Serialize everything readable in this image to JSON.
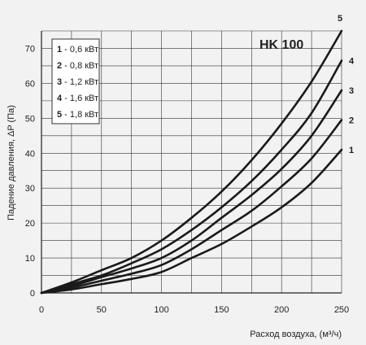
{
  "chart_data": {
    "type": "line",
    "title": "HK 100",
    "xlabel": "Расход воздуха, (м³/ч)",
    "ylabel": "Падение давления, ΔP (Па)",
    "xlim": [
      0,
      250
    ],
    "ylim": [
      0,
      75
    ],
    "xticks": [
      0,
      50,
      100,
      150,
      200,
      250
    ],
    "yticks": [
      0,
      10,
      20,
      30,
      40,
      50,
      60,
      70
    ],
    "grid": true,
    "legend_position": "top-left",
    "series": [
      {
        "name": "1",
        "legend_label": "1 - 0,6 кВт",
        "num": "1",
        "desc": " - 0,6 кВт",
        "x": [
          0,
          25,
          50,
          75,
          100,
          125,
          150,
          175,
          200,
          225,
          250
        ],
        "y": [
          0,
          1,
          2.5,
          4,
          6,
          10,
          14,
          19,
          24.5,
          31.5,
          41
        ]
      },
      {
        "name": "2",
        "legend_label": "2 - 0,8 кВт",
        "num": "2",
        "desc": " - 0,8 кВт",
        "x": [
          0,
          25,
          50,
          75,
          100,
          125,
          150,
          175,
          200,
          225,
          250
        ],
        "y": [
          0,
          1.5,
          3.5,
          5.5,
          8,
          12.5,
          18,
          23.5,
          30.5,
          38.5,
          49.5
        ]
      },
      {
        "name": "3",
        "legend_label": "3 - 1,2 кВт",
        "num": "3",
        "desc": " - 1,2 кВт",
        "x": [
          0,
          25,
          50,
          75,
          100,
          125,
          150,
          175,
          200,
          225,
          250
        ],
        "y": [
          0,
          2,
          4.5,
          7,
          10,
          15,
          21.5,
          28,
          35.5,
          45,
          58
        ]
      },
      {
        "name": "4",
        "legend_label": "4 - 1,6 кВт",
        "num": "4",
        "desc": " - 1,6 кВт",
        "x": [
          0,
          25,
          50,
          75,
          100,
          125,
          150,
          175,
          200,
          225,
          250
        ],
        "y": [
          0,
          2.5,
          5,
          8.5,
          12.5,
          18,
          24.5,
          32,
          41,
          51.5,
          66.5
        ]
      },
      {
        "name": "5",
        "legend_label": "5 - 1,8 кВт",
        "num": "5",
        "desc": " - 1,8 кВт",
        "x": [
          0,
          25,
          50,
          75,
          100,
          125,
          150,
          175,
          200,
          225,
          250
        ],
        "y": [
          0,
          3,
          6.5,
          10,
          15,
          21.5,
          29,
          38,
          48.5,
          60.5,
          75
        ]
      }
    ]
  }
}
